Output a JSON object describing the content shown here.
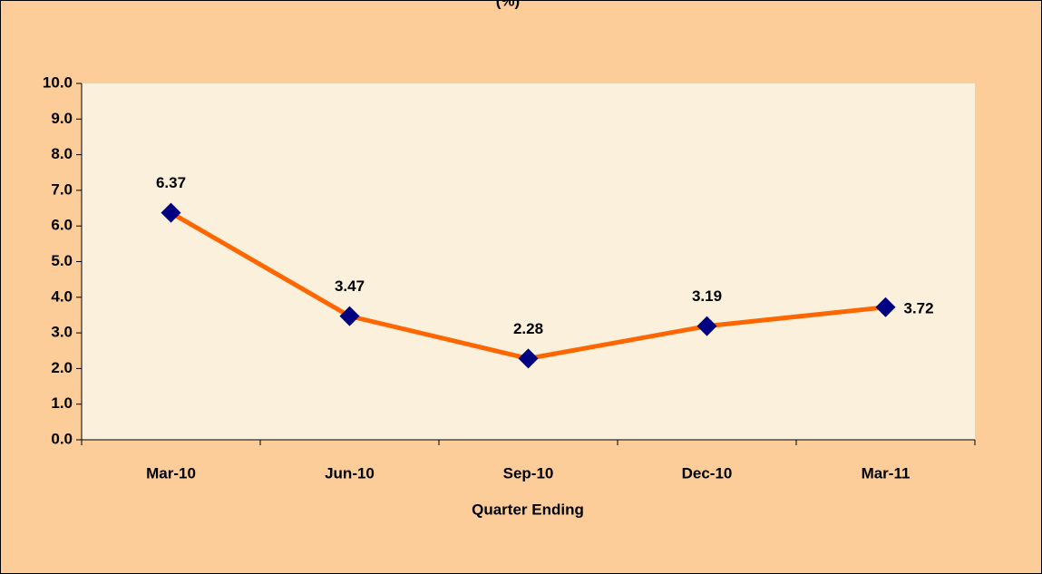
{
  "chart_data": {
    "type": "line",
    "title": "(%)",
    "x_label": "Quarter Ending",
    "categories": [
      "Mar-10",
      "Jun-10",
      "Sep-10",
      "Dec-10",
      "Mar-11"
    ],
    "series": [
      {
        "name": null,
        "color": "#ff6600",
        "marker_color": "#000080",
        "values": [
          6.37,
          3.47,
          2.28,
          3.19,
          3.72
        ]
      }
    ],
    "ylim": [
      0,
      10
    ],
    "yticks": [
      {
        "value": 0,
        "label": "0.0"
      },
      {
        "value": 1,
        "label": "1.0"
      },
      {
        "value": 2,
        "label": "2.0"
      },
      {
        "value": 3,
        "label": "3.0"
      },
      {
        "value": 4,
        "label": "4.0"
      },
      {
        "value": 5,
        "label": "5.0"
      },
      {
        "value": 6,
        "label": "6.0"
      },
      {
        "value": 7,
        "label": "7.0"
      },
      {
        "value": 8,
        "label": "8.0"
      },
      {
        "value": 9,
        "label": "9.0"
      },
      {
        "value": 10,
        "label": "10.0"
      }
    ],
    "grid": false
  }
}
